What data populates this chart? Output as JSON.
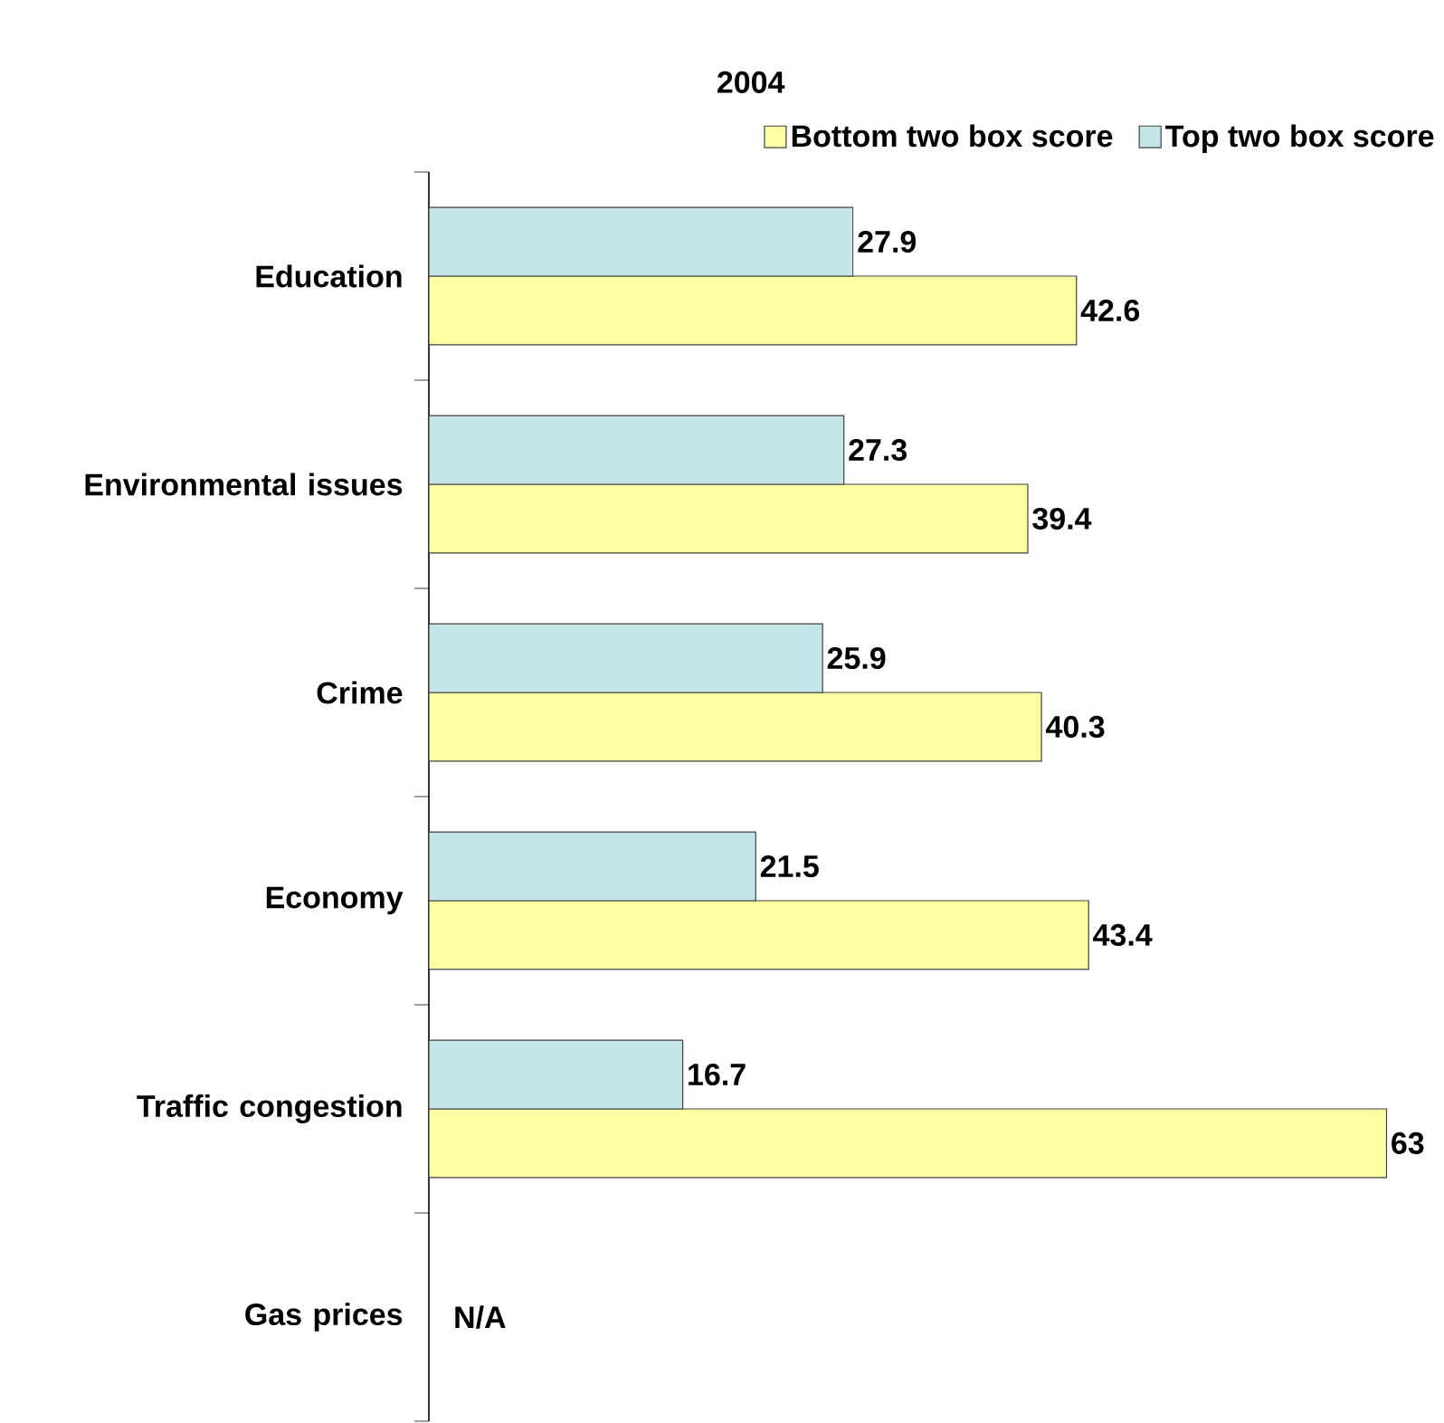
{
  "chart_data": {
    "type": "bar",
    "orientation": "horizontal",
    "title": "2004",
    "categories": [
      "Education",
      "Environmental issues",
      "Crime",
      "Economy",
      "Traffic congestion",
      "Gas prices"
    ],
    "series": [
      {
        "name": "Bottom two box score",
        "color": "#ffffa6",
        "values": [
          42.6,
          39.4,
          40.3,
          43.4,
          63,
          null
        ]
      },
      {
        "name": "Top two box score",
        "color": "#c4e6e8",
        "values": [
          27.9,
          27.3,
          25.9,
          21.5,
          16.7,
          null
        ]
      }
    ],
    "data_labels": true,
    "legend": "top",
    "annotations": [
      "N/A"
    ]
  }
}
